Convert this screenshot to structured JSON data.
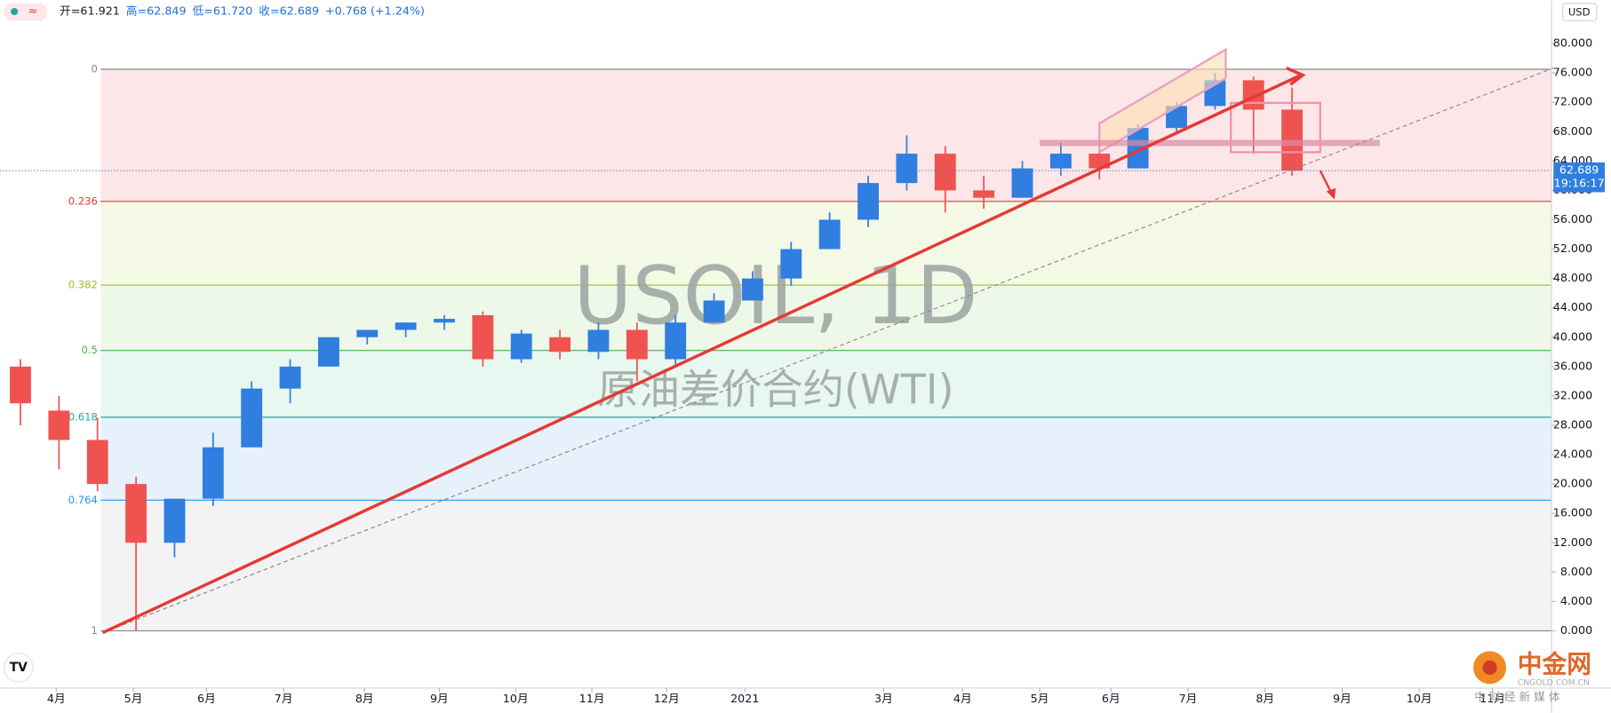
{
  "header": {
    "items": [
      "开=61.921",
      "高=62.849",
      "低=61.720",
      "收=62.689",
      "+0.768 (+1.24%)"
    ],
    "currency": "USD"
  },
  "logo": {
    "name": "中金网",
    "url": "CNGOLD.COM.CN",
    "tagline": "中 财 经 新 媒 体"
  },
  "chart_data": {
    "type": "candlestick",
    "title": "USOIL, 1D",
    "subtitle": "原油差价合约(WTI)",
    "up_color": "#2f7ee0",
    "down_color": "#ef5350",
    "open": [
      36,
      30,
      26,
      20,
      12,
      18,
      25,
      33,
      36,
      40,
      41,
      42,
      43,
      37,
      40,
      38,
      41,
      37,
      42,
      45,
      48,
      52,
      56,
      61,
      65,
      60,
      59,
      63,
      65,
      63,
      68.5,
      71.5,
      75,
      71
    ],
    "high": [
      37,
      32,
      29,
      21,
      18,
      27,
      34,
      37,
      40,
      41,
      42,
      43,
      43.5,
      41,
      41,
      42,
      42,
      43,
      46,
      49,
      53,
      57,
      62,
      67.5,
      66,
      62,
      64,
      66.5,
      66,
      69,
      72,
      76,
      75.5,
      74
    ],
    "low": [
      28,
      22,
      19,
      0,
      10,
      17,
      25,
      31,
      36,
      39,
      40,
      41,
      36,
      36.5,
      37,
      37,
      34,
      36,
      42,
      45,
      47,
      52,
      55,
      60,
      57,
      57.5,
      59,
      62,
      61.5,
      63,
      68,
      71,
      65,
      62
    ],
    "close": [
      31,
      26,
      20,
      12,
      18,
      25,
      33,
      36,
      40,
      41,
      42,
      42.5,
      37,
      40.5,
      38,
      41,
      37,
      42,
      45,
      48,
      52,
      56,
      61,
      65,
      60,
      59,
      63,
      65,
      63,
      68.5,
      71.5,
      75,
      71,
      62.689
    ],
    "xlim": [
      -0.53,
      39.73
    ],
    "xticks": [
      {
        "value": 0.93,
        "label": "4月"
      },
      {
        "value": 2.93,
        "label": "5月"
      },
      {
        "value": 4.83,
        "label": "6月"
      },
      {
        "value": 6.83,
        "label": "7月"
      },
      {
        "value": 8.93,
        "label": "8月"
      },
      {
        "value": 10.87,
        "label": "9月"
      },
      {
        "value": 12.85,
        "label": "10月"
      },
      {
        "value": 14.83,
        "label": "11月"
      },
      {
        "value": 16.77,
        "label": "12月"
      },
      {
        "value": 18.8,
        "label": "2021"
      },
      {
        "value": 22.4,
        "label": "3月"
      },
      {
        "value": 24.45,
        "label": "4月"
      },
      {
        "value": 26.45,
        "label": "5月"
      },
      {
        "value": 28.3,
        "label": "6月"
      },
      {
        "value": 30.3,
        "label": "7月"
      },
      {
        "value": 32.3,
        "label": "8月"
      },
      {
        "value": 34.3,
        "label": "9月"
      },
      {
        "value": 36.3,
        "label": "10月"
      },
      {
        "value": 38.2,
        "label": "11月"
      }
    ],
    "ylim": [
      -7.8,
      85.9
    ],
    "yticks": [
      {
        "value": 0,
        "label": "0.000"
      },
      {
        "value": 4,
        "label": "4.000"
      },
      {
        "value": 8,
        "label": "8.000"
      },
      {
        "value": 12,
        "label": "12.000"
      },
      {
        "value": 16,
        "label": "16.000"
      },
      {
        "value": 20,
        "label": "20.000"
      },
      {
        "value": 24,
        "label": "24.000"
      },
      {
        "value": 28,
        "label": "28.000"
      },
      {
        "value": 32,
        "label": "32.000"
      },
      {
        "value": 36,
        "label": "36.000"
      },
      {
        "value": 40,
        "label": "40.000"
      },
      {
        "value": 44,
        "label": "44.000"
      },
      {
        "value": 48,
        "label": "48.000"
      },
      {
        "value": 52,
        "label": "52.000"
      },
      {
        "value": 56,
        "label": "56.000"
      },
      {
        "value": 60,
        "label": "60.000"
      },
      {
        "value": 64,
        "label": "64.000"
      },
      {
        "value": 68,
        "label": "68.000"
      },
      {
        "value": 72,
        "label": "72.000"
      },
      {
        "value": 76,
        "label": "76.000"
      },
      {
        "value": 80,
        "label": "80.000"
      }
    ],
    "fib_levels": [
      {
        "label": "0",
        "value": 76.5,
        "color": "#888888",
        "fill": "#fce6e8"
      },
      {
        "label": "0.236",
        "value": 58.5,
        "color": "#e53935",
        "fill": "#f4f9e6"
      },
      {
        "label": "0.382",
        "value": 47.1,
        "color": "#9bbd2a",
        "fill": "#eef8e8"
      },
      {
        "label": "0.5",
        "value": 38.2,
        "color": "#4caf50",
        "fill": "#e8f7f0"
      },
      {
        "label": "0.618",
        "value": 29.1,
        "color": "#26a69a",
        "fill": "#e7f1fb"
      },
      {
        "label": "0.764",
        "value": 17.8,
        "color": "#2196f3",
        "fill": "#f3f3f3"
      },
      {
        "label": "1",
        "value": 0,
        "color": "#888888"
      }
    ],
    "last_price": {
      "value": 62.689,
      "label": "62.689",
      "countdown": "19:16:17",
      "color": "#2f7ee0"
    }
  }
}
